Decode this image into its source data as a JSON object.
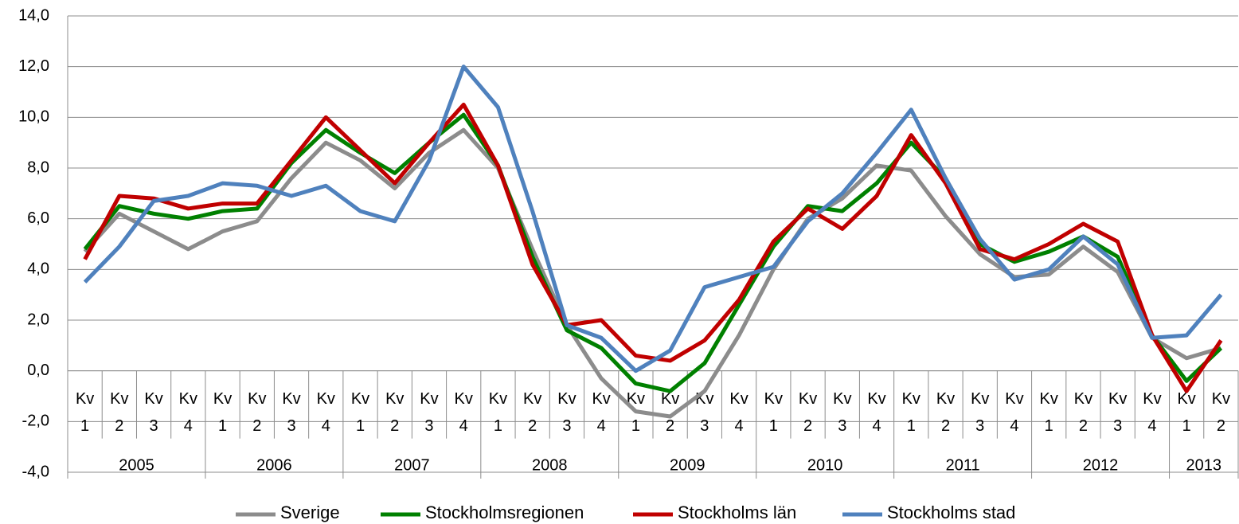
{
  "chart_data": {
    "type": "line",
    "categories": [
      [
        "Kv",
        "1"
      ],
      [
        "Kv",
        "2"
      ],
      [
        "Kv",
        "3"
      ],
      [
        "Kv",
        "4"
      ],
      [
        "Kv",
        "1"
      ],
      [
        "Kv",
        "2"
      ],
      [
        "Kv",
        "3"
      ],
      [
        "Kv",
        "4"
      ],
      [
        "Kv",
        "1"
      ],
      [
        "Kv",
        "2"
      ],
      [
        "Kv",
        "3"
      ],
      [
        "Kv",
        "4"
      ],
      [
        "Kv",
        "1"
      ],
      [
        "Kv",
        "2"
      ],
      [
        "Kv",
        "3"
      ],
      [
        "Kv",
        "4"
      ],
      [
        "Kv",
        "1"
      ],
      [
        "Kv",
        "2"
      ],
      [
        "Kv",
        "3"
      ],
      [
        "Kv",
        "4"
      ],
      [
        "Kv",
        "1"
      ],
      [
        "Kv",
        "2"
      ],
      [
        "Kv",
        "3"
      ],
      [
        "Kv",
        "4"
      ],
      [
        "Kv",
        "1"
      ],
      [
        "Kv",
        "2"
      ],
      [
        "Kv",
        "3"
      ],
      [
        "Kv",
        "4"
      ],
      [
        "Kv",
        "1"
      ],
      [
        "Kv",
        "2"
      ],
      [
        "Kv",
        "3"
      ],
      [
        "Kv",
        "4"
      ],
      [
        "Kv",
        "1"
      ],
      [
        "Kv",
        "2"
      ]
    ],
    "year_groups": [
      {
        "label": "2005",
        "quarters": 4
      },
      {
        "label": "2006",
        "quarters": 4
      },
      {
        "label": "2007",
        "quarters": 4
      },
      {
        "label": "2008",
        "quarters": 4
      },
      {
        "label": "2009",
        "quarters": 4
      },
      {
        "label": "2010",
        "quarters": 4
      },
      {
        "label": "2011",
        "quarters": 4
      },
      {
        "label": "2012",
        "quarters": 4
      },
      {
        "label": "2013",
        "quarters": 2
      }
    ],
    "series": [
      {
        "name": "Sverige",
        "color": "#8c8c8c",
        "values": [
          4.7,
          6.2,
          5.5,
          4.8,
          5.5,
          5.9,
          7.6,
          9.0,
          8.3,
          7.2,
          8.6,
          9.5,
          8.0,
          4.8,
          1.8,
          -0.3,
          -1.6,
          -1.8,
          -0.8,
          1.4,
          4.0,
          6.0,
          6.8,
          8.1,
          7.9,
          6.1,
          4.6,
          3.7,
          3.8,
          4.9,
          3.9,
          1.3,
          0.5,
          0.9
        ]
      },
      {
        "name": "Stockholmsregionen",
        "color": "#008000",
        "values": [
          4.8,
          6.5,
          6.2,
          6.0,
          6.3,
          6.4,
          8.2,
          9.5,
          8.6,
          7.8,
          9.0,
          10.1,
          8.1,
          4.5,
          1.6,
          0.9,
          -0.5,
          -0.8,
          0.3,
          2.6,
          4.9,
          6.5,
          6.3,
          7.4,
          9.0,
          7.6,
          5.0,
          4.3,
          4.7,
          5.3,
          4.5,
          1.4,
          -0.4,
          0.9
        ]
      },
      {
        "name": "Stockholms län",
        "color": "#c00000",
        "values": [
          4.4,
          6.9,
          6.8,
          6.4,
          6.6,
          6.6,
          8.3,
          10.0,
          8.7,
          7.4,
          9.0,
          10.5,
          8.1,
          4.2,
          1.8,
          2.0,
          0.6,
          0.4,
          1.2,
          2.8,
          5.1,
          6.4,
          5.6,
          6.9,
          9.3,
          7.4,
          4.8,
          4.4,
          5.0,
          5.8,
          5.1,
          1.4,
          -0.8,
          1.2
        ]
      },
      {
        "name": "Stockholms stad",
        "color": "#4f81bd",
        "values": [
          3.5,
          4.9,
          6.7,
          6.9,
          7.4,
          7.3,
          6.9,
          7.3,
          6.3,
          5.9,
          8.3,
          12.0,
          10.4,
          6.3,
          1.8,
          1.3,
          0.0,
          0.8,
          3.3,
          3.7,
          4.1,
          5.9,
          7.0,
          8.6,
          10.3,
          7.6,
          5.2,
          3.6,
          4.0,
          5.3,
          4.2,
          1.3,
          1.4,
          3.0
        ]
      }
    ],
    "ylim": [
      -4,
      14
    ],
    "yticks": [
      {
        "value": -4,
        "label": "-4,0"
      },
      {
        "value": -2,
        "label": "-2,0"
      },
      {
        "value": 0,
        "label": "0,0"
      },
      {
        "value": 2,
        "label": "2,0"
      },
      {
        "value": 4,
        "label": "4,0"
      },
      {
        "value": 6,
        "label": "6,0"
      },
      {
        "value": 8,
        "label": "8,0"
      },
      {
        "value": 10,
        "label": "10,0"
      },
      {
        "value": 12,
        "label": "12,0"
      },
      {
        "value": 14,
        "label": "14,0"
      }
    ],
    "grid": true,
    "legend": "bottom"
  }
}
